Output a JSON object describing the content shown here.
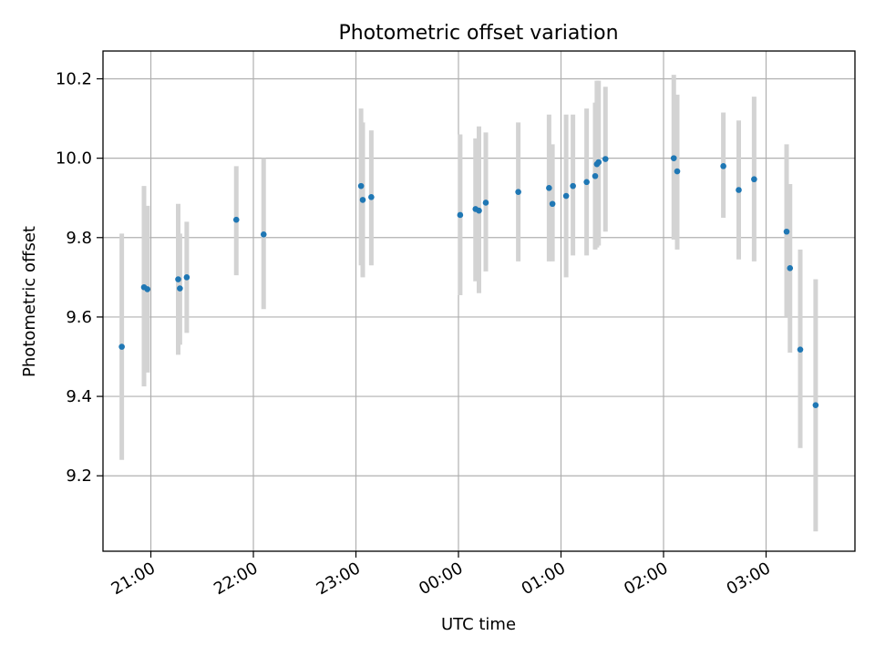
{
  "chart_data": {
    "type": "scatter",
    "title": "Photometric offset variation",
    "xlabel": "UTC time",
    "ylabel": "Photometric offset",
    "grid": true,
    "legend": "none",
    "x_unit": "UTC time",
    "xlim": [
      "20:32",
      "03:52"
    ],
    "ylim": [
      9.01,
      10.27
    ],
    "x_ticks": [
      "21:00",
      "22:00",
      "23:00",
      "00:00",
      "01:00",
      "02:00",
      "03:00"
    ],
    "y_ticks": [
      "9.2",
      "9.4",
      "9.6",
      "9.8",
      "10.0",
      "10.2"
    ],
    "colors": {
      "point": "#1f77b4",
      "errorbar": "#d3d3d3",
      "grid": "#b0b0b0"
    },
    "points": [
      {
        "t": "20:43",
        "y": 9.525,
        "ylo": 9.24,
        "yhi": 9.81
      },
      {
        "t": "20:56",
        "y": 9.675,
        "ylo": 9.425,
        "yhi": 9.93
      },
      {
        "t": "20:58",
        "y": 9.67,
        "ylo": 9.46,
        "yhi": 9.88
      },
      {
        "t": "21:16",
        "y": 9.695,
        "ylo": 9.505,
        "yhi": 9.885
      },
      {
        "t": "21:17",
        "y": 9.672,
        "ylo": 9.53,
        "yhi": 9.81
      },
      {
        "t": "21:21",
        "y": 9.7,
        "ylo": 9.56,
        "yhi": 9.84
      },
      {
        "t": "21:50",
        "y": 9.845,
        "ylo": 9.705,
        "yhi": 9.98
      },
      {
        "t": "22:06",
        "y": 9.808,
        "ylo": 9.62,
        "yhi": 10.0
      },
      {
        "t": "23:03",
        "y": 9.93,
        "ylo": 9.73,
        "yhi": 10.125
      },
      {
        "t": "23:04",
        "y": 9.895,
        "ylo": 9.7,
        "yhi": 10.09
      },
      {
        "t": "23:09",
        "y": 9.902,
        "ylo": 9.73,
        "yhi": 10.07
      },
      {
        "t": "00:01",
        "y": 9.857,
        "ylo": 9.655,
        "yhi": 10.06
      },
      {
        "t": "00:10",
        "y": 9.872,
        "ylo": 9.69,
        "yhi": 10.05
      },
      {
        "t": "00:12",
        "y": 9.868,
        "ylo": 9.66,
        "yhi": 10.08
      },
      {
        "t": "00:16",
        "y": 9.888,
        "ylo": 9.715,
        "yhi": 10.065
      },
      {
        "t": "00:35",
        "y": 9.915,
        "ylo": 9.74,
        "yhi": 10.09
      },
      {
        "t": "00:53",
        "y": 9.925,
        "ylo": 9.74,
        "yhi": 10.11
      },
      {
        "t": "00:55",
        "y": 9.885,
        "ylo": 9.74,
        "yhi": 10.035
      },
      {
        "t": "01:03",
        "y": 9.905,
        "ylo": 9.7,
        "yhi": 10.11
      },
      {
        "t": "01:07",
        "y": 9.93,
        "ylo": 9.755,
        "yhi": 10.11
      },
      {
        "t": "01:15",
        "y": 9.94,
        "ylo": 9.755,
        "yhi": 10.125
      },
      {
        "t": "01:20",
        "y": 9.955,
        "ylo": 9.77,
        "yhi": 10.14
      },
      {
        "t": "01:21",
        "y": 9.985,
        "ylo": 9.775,
        "yhi": 10.195
      },
      {
        "t": "01:22",
        "y": 9.99,
        "ylo": 9.78,
        "yhi": 10.195
      },
      {
        "t": "01:26",
        "y": 9.998,
        "ylo": 9.815,
        "yhi": 10.18
      },
      {
        "t": "02:06",
        "y": 10.0,
        "ylo": 9.795,
        "yhi": 10.21
      },
      {
        "t": "02:08",
        "y": 9.967,
        "ylo": 9.77,
        "yhi": 10.16
      },
      {
        "t": "02:35",
        "y": 9.98,
        "ylo": 9.85,
        "yhi": 10.115
      },
      {
        "t": "02:44",
        "y": 9.92,
        "ylo": 9.745,
        "yhi": 10.095
      },
      {
        "t": "02:53",
        "y": 9.947,
        "ylo": 9.74,
        "yhi": 10.155
      },
      {
        "t": "03:12",
        "y": 9.815,
        "ylo": 9.6,
        "yhi": 10.035
      },
      {
        "t": "03:14",
        "y": 9.723,
        "ylo": 9.51,
        "yhi": 9.935
      },
      {
        "t": "03:20",
        "y": 9.518,
        "ylo": 9.27,
        "yhi": 9.77
      },
      {
        "t": "03:29",
        "y": 9.378,
        "ylo": 9.06,
        "yhi": 9.695
      }
    ]
  }
}
